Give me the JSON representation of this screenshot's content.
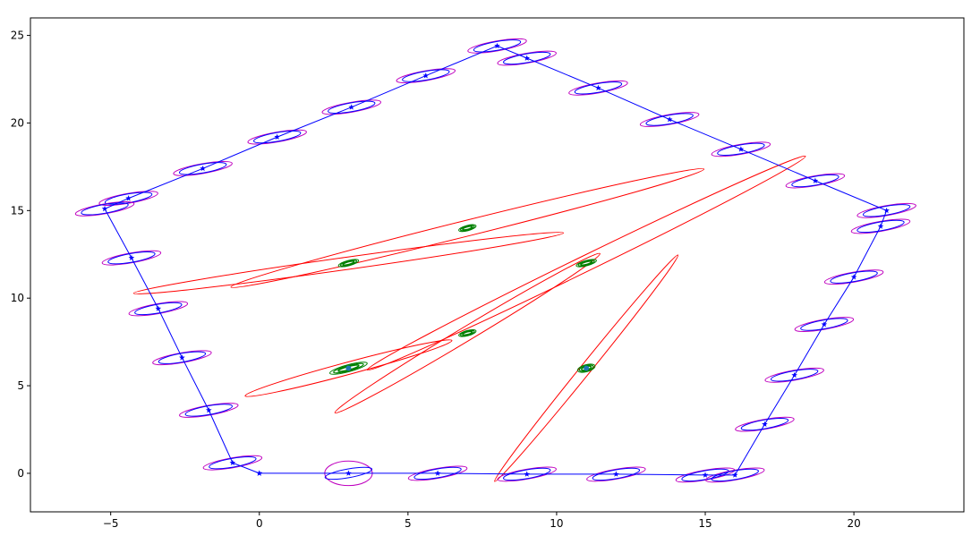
{
  "chart_data": {
    "type": "scatter",
    "title": "",
    "xlabel": "",
    "ylabel": "",
    "xlim": [
      -7.7,
      23.7
    ],
    "ylim": [
      -2.2,
      26.0
    ],
    "grid": false,
    "xticks": [
      -5,
      0,
      5,
      10,
      15,
      20
    ],
    "yticks": [
      0,
      5,
      10,
      15,
      20,
      25
    ],
    "xtick_labels": [
      "−5",
      "0",
      "5",
      "10",
      "15",
      "20"
    ],
    "ytick_labels": [
      "0",
      "5",
      "10",
      "15",
      "20",
      "25"
    ],
    "colors": {
      "trajectory": "#0000ff",
      "pose_cov": "#0000ff",
      "pose_cov_outer": "#bf00bf",
      "landmark_estimate": "#008000",
      "landmark_initial": "#ff0000",
      "landmark_point": "#1f77b4"
    },
    "trajectory": [
      [
        0.0,
        0.0
      ],
      [
        3.0,
        0.0
      ],
      [
        6.0,
        0.0
      ],
      [
        9.0,
        -0.05
      ],
      [
        12.0,
        -0.05
      ],
      [
        15.0,
        -0.1
      ],
      [
        16.0,
        -0.1
      ],
      [
        17.0,
        2.8
      ],
      [
        18.0,
        5.6
      ],
      [
        19.0,
        8.5
      ],
      [
        20.0,
        11.2
      ],
      [
        20.9,
        14.1
      ],
      [
        21.1,
        15.0
      ],
      [
        18.7,
        16.7
      ],
      [
        16.2,
        18.5
      ],
      [
        13.8,
        20.2
      ],
      [
        11.4,
        22.0
      ],
      [
        9.0,
        23.7
      ],
      [
        8.0,
        24.4
      ],
      [
        5.6,
        22.7
      ],
      [
        3.1,
        20.9
      ],
      [
        0.6,
        19.2
      ],
      [
        -1.9,
        17.4
      ],
      [
        -4.4,
        15.7
      ],
      [
        -5.2,
        15.1
      ],
      [
        -4.3,
        12.3
      ],
      [
        -3.4,
        9.4
      ],
      [
        -2.6,
        6.6
      ],
      [
        -1.7,
        3.6
      ],
      [
        -0.9,
        0.6
      ],
      [
        0.0,
        0.0
      ]
    ],
    "pose_covariances": [
      {
        "center": [
          3.0,
          0.0
        ],
        "inner": [
          0.8,
          0.25,
          -10
        ],
        "outer": [
          0.8,
          0.7,
          0
        ]
      },
      {
        "center": [
          6.0,
          0.0
        ],
        "inner": [
          0.8,
          0.25,
          -10
        ],
        "outer": [
          1.0,
          0.28,
          -10
        ]
      },
      {
        "center": [
          9.0,
          -0.05
        ],
        "inner": [
          0.8,
          0.25,
          -10
        ],
        "outer": [
          1.0,
          0.28,
          -10
        ]
      },
      {
        "center": [
          12.0,
          -0.05
        ],
        "inner": [
          0.8,
          0.25,
          -10
        ],
        "outer": [
          1.0,
          0.28,
          -10
        ]
      },
      {
        "center": [
          15.0,
          -0.1
        ],
        "inner": [
          0.8,
          0.25,
          -10
        ],
        "outer": [
          1.0,
          0.28,
          -10
        ]
      },
      {
        "center": [
          16.0,
          -0.1
        ],
        "inner": [
          0.8,
          0.25,
          -10
        ],
        "outer": [
          1.0,
          0.28,
          -10
        ]
      },
      {
        "center": [
          17.0,
          2.8
        ],
        "inner": [
          0.8,
          0.25,
          -10
        ],
        "outer": [
          1.0,
          0.28,
          -10
        ]
      },
      {
        "center": [
          18.0,
          5.6
        ],
        "inner": [
          0.8,
          0.25,
          -10
        ],
        "outer": [
          1.0,
          0.28,
          -10
        ]
      },
      {
        "center": [
          19.0,
          8.5
        ],
        "inner": [
          0.8,
          0.25,
          -10
        ],
        "outer": [
          1.0,
          0.28,
          -10
        ]
      },
      {
        "center": [
          20.0,
          11.2
        ],
        "inner": [
          0.8,
          0.25,
          -10
        ],
        "outer": [
          1.0,
          0.28,
          -10
        ]
      },
      {
        "center": [
          20.9,
          14.1
        ],
        "inner": [
          0.8,
          0.25,
          -10
        ],
        "outer": [
          1.0,
          0.28,
          -10
        ]
      },
      {
        "center": [
          21.1,
          15.0
        ],
        "inner": [
          0.8,
          0.25,
          -10
        ],
        "outer": [
          1.0,
          0.28,
          -10
        ]
      },
      {
        "center": [
          18.7,
          16.7
        ],
        "inner": [
          0.8,
          0.25,
          -10
        ],
        "outer": [
          1.0,
          0.28,
          -10
        ]
      },
      {
        "center": [
          16.2,
          18.5
        ],
        "inner": [
          0.8,
          0.25,
          -10
        ],
        "outer": [
          1.0,
          0.28,
          -10
        ]
      },
      {
        "center": [
          13.8,
          20.2
        ],
        "inner": [
          0.8,
          0.25,
          -10
        ],
        "outer": [
          1.0,
          0.28,
          -10
        ]
      },
      {
        "center": [
          11.4,
          22.0
        ],
        "inner": [
          0.8,
          0.25,
          -10
        ],
        "outer": [
          1.0,
          0.28,
          -10
        ]
      },
      {
        "center": [
          9.0,
          23.7
        ],
        "inner": [
          0.8,
          0.25,
          -10
        ],
        "outer": [
          1.0,
          0.28,
          -10
        ]
      },
      {
        "center": [
          8.0,
          24.4
        ],
        "inner": [
          0.8,
          0.25,
          -10
        ],
        "outer": [
          1.0,
          0.28,
          -10
        ]
      },
      {
        "center": [
          5.6,
          22.7
        ],
        "inner": [
          0.8,
          0.25,
          -10
        ],
        "outer": [
          1.0,
          0.28,
          -10
        ]
      },
      {
        "center": [
          3.1,
          20.9
        ],
        "inner": [
          0.8,
          0.25,
          -10
        ],
        "outer": [
          1.0,
          0.28,
          -10
        ]
      },
      {
        "center": [
          0.6,
          19.2
        ],
        "inner": [
          0.8,
          0.25,
          -10
        ],
        "outer": [
          1.0,
          0.28,
          -10
        ]
      },
      {
        "center": [
          -1.9,
          17.4
        ],
        "inner": [
          0.8,
          0.25,
          -10
        ],
        "outer": [
          1.0,
          0.28,
          -10
        ]
      },
      {
        "center": [
          -4.4,
          15.7
        ],
        "inner": [
          0.8,
          0.25,
          -10
        ],
        "outer": [
          1.0,
          0.28,
          -10
        ]
      },
      {
        "center": [
          -5.2,
          15.1
        ],
        "inner": [
          0.8,
          0.25,
          -10
        ],
        "outer": [
          1.0,
          0.28,
          -10
        ]
      },
      {
        "center": [
          -4.3,
          12.3
        ],
        "inner": [
          0.8,
          0.25,
          -10
        ],
        "outer": [
          1.0,
          0.28,
          -10
        ]
      },
      {
        "center": [
          -3.4,
          9.4
        ],
        "inner": [
          0.8,
          0.25,
          -10
        ],
        "outer": [
          1.0,
          0.28,
          -10
        ]
      },
      {
        "center": [
          -2.6,
          6.6
        ],
        "inner": [
          0.8,
          0.25,
          -10
        ],
        "outer": [
          1.0,
          0.28,
          -10
        ]
      },
      {
        "center": [
          -1.7,
          3.6
        ],
        "inner": [
          0.8,
          0.25,
          -10
        ],
        "outer": [
          1.0,
          0.28,
          -10
        ]
      },
      {
        "center": [
          -0.9,
          0.6
        ],
        "inner": [
          0.8,
          0.25,
          -10
        ],
        "outer": [
          1.0,
          0.28,
          -10
        ]
      }
    ],
    "landmarks": [
      {
        "center": [
          3.0,
          6.0
        ],
        "initial": [
          3.6,
          0.35,
          -15
        ],
        "estimate": [
          0.65,
          0.2,
          -15
        ]
      },
      {
        "center": [
          7.0,
          8.0
        ],
        "initial": [
          5.2,
          0.4,
          -31
        ],
        "estimate": [
          0.3,
          0.15,
          -15
        ]
      },
      {
        "center": [
          11.0,
          6.0
        ],
        "initial": [
          4.9,
          0.3,
          -51
        ],
        "estimate": [
          0.3,
          0.2,
          -15
        ]
      },
      {
        "center": [
          3.0,
          12.0
        ],
        "initial": [
          7.3,
          0.35,
          -8
        ],
        "estimate": [
          0.35,
          0.15,
          -15
        ]
      },
      {
        "center": [
          7.0,
          14.0
        ],
        "initial": [
          8.2,
          0.45,
          -14
        ],
        "estimate": [
          0.3,
          0.15,
          -15
        ]
      },
      {
        "center": [
          11.0,
          12.0
        ],
        "initial": [
          8.2,
          0.45,
          -26
        ],
        "estimate": [
          0.35,
          0.15,
          -15
        ]
      }
    ],
    "landmark_points": [
      [
        3.0,
        6.0
      ],
      [
        11.0,
        6.0
      ]
    ]
  }
}
